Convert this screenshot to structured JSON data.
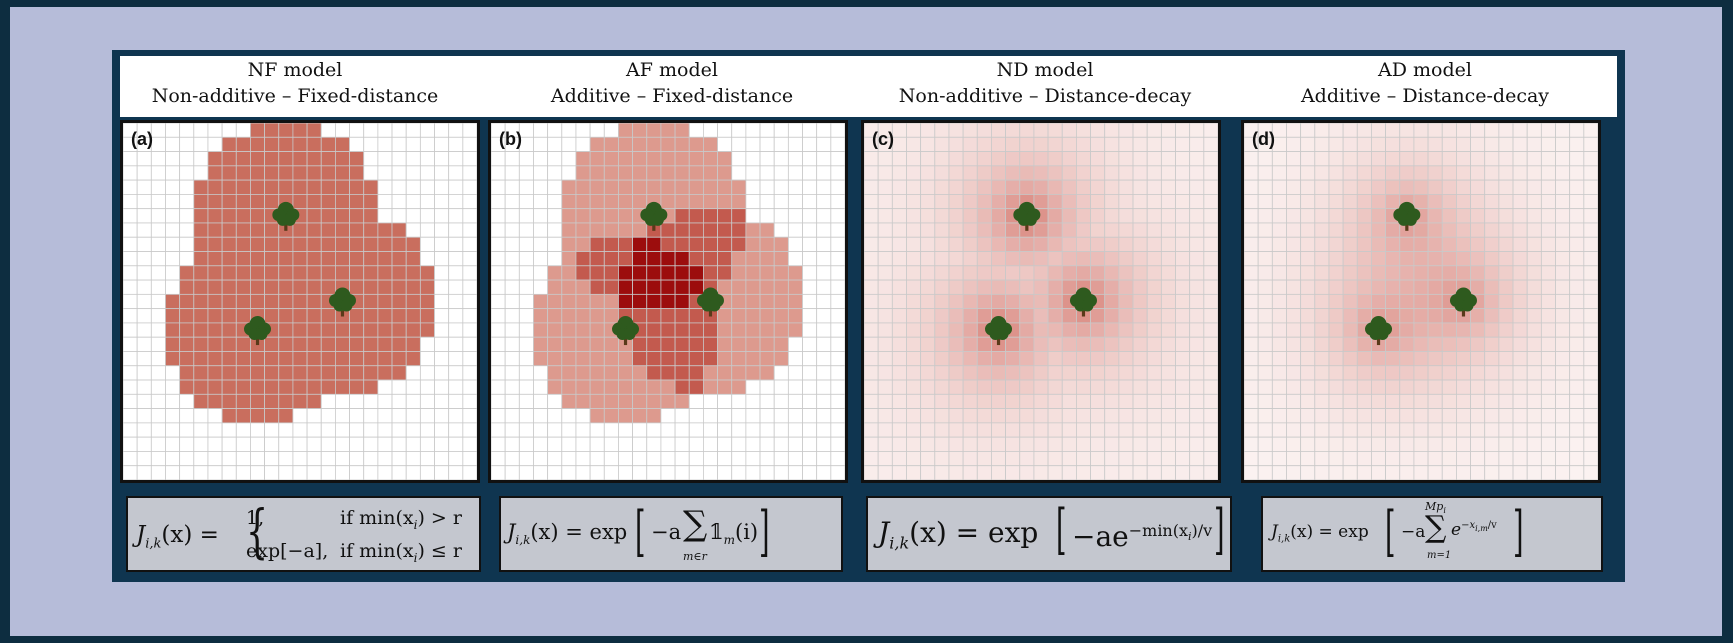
{
  "models": [
    {
      "id": "a",
      "title": "NF model",
      "subtitle": "Non-additive – Fixed-distance",
      "panel_label": "(a)",
      "pattern": "fixed-nonadditive",
      "equation": {
        "lhs": "J",
        "sub": "i,k",
        "arg": "(x) =",
        "case1_val": "1,",
        "case1_cond": "if min(x",
        "case1_cond_sub": "i",
        "case1_cond_end": ") > r",
        "case2_val": "exp[−a],",
        "case2_cond": "if min(x",
        "case2_cond_sub": "i",
        "case2_cond_end": ") ≤ r"
      }
    },
    {
      "id": "b",
      "title": "AF model",
      "subtitle": "Additive – Fixed-distance",
      "panel_label": "(b)",
      "pattern": "fixed-additive",
      "equation": {
        "lhs": "J",
        "sub": "i,k",
        "arg": "(x) = exp",
        "inner": "−a",
        "sum": "∑",
        "sum_below": "m∈r",
        "term": "𝟙",
        "term_sub": "m",
        "term_end": "(i)"
      }
    },
    {
      "id": "c",
      "title": "ND model",
      "subtitle": "Non-additive – Distance-decay",
      "panel_label": "(c)",
      "pattern": "decay-nonadditive",
      "equation": {
        "lhs": "J",
        "sub": "i,k",
        "arg": "(x) = exp",
        "inner": "−ae",
        "sup": "−min(x",
        "sup_sub": "i",
        "sup_end": ")/v"
      }
    },
    {
      "id": "d",
      "title": "AD model",
      "subtitle": "Additive – Distance-decay",
      "panel_label": "(d)",
      "pattern": "decay-additive",
      "equation": {
        "lhs": "J",
        "sub": "i,k",
        "arg": "(x) = exp",
        "inner": "−a",
        "sum": "∑",
        "sum_above": "Mp",
        "sum_above_sub": "i",
        "sum_below": "m=1",
        "term": "e",
        "term_sup": "−x",
        "term_sup_sub": "i,m",
        "term_sup_end": "/v"
      }
    }
  ],
  "colors": {
    "fixed": "#c96e5e",
    "fixed_light": "#dd9a8e",
    "overlap": "#c35a4e",
    "overlap_dark": "#9c0d0d",
    "decay": "#c0392b",
    "grid": "#c9c9c9",
    "tree_leaf": "#2e5a1e",
    "tree_trunk": "#5a3a1a"
  }
}
